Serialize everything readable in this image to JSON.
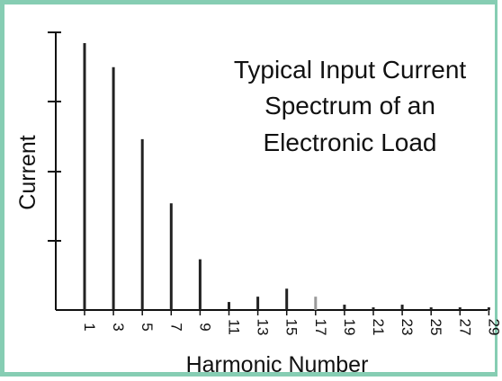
{
  "chart_data": {
    "type": "bar",
    "title_lines": [
      "Typical Input Current",
      "Spectrum of an",
      "Electronic Load"
    ],
    "xlabel": "Harmonic Number",
    "ylabel": "Current",
    "categories": [
      "1",
      "3",
      "5",
      "7",
      "9",
      "11",
      "13",
      "15",
      "17",
      "19",
      "21",
      "23",
      "25",
      "27",
      "29"
    ],
    "values": [
      100,
      91,
      64,
      40,
      19,
      3,
      5,
      8,
      5,
      2,
      1,
      2,
      1,
      1,
      1
    ],
    "ylim": [
      0,
      100
    ],
    "grid": false,
    "legend": "none",
    "bar_color": "#222222",
    "faded_bar_color": "#9a9a9a"
  }
}
